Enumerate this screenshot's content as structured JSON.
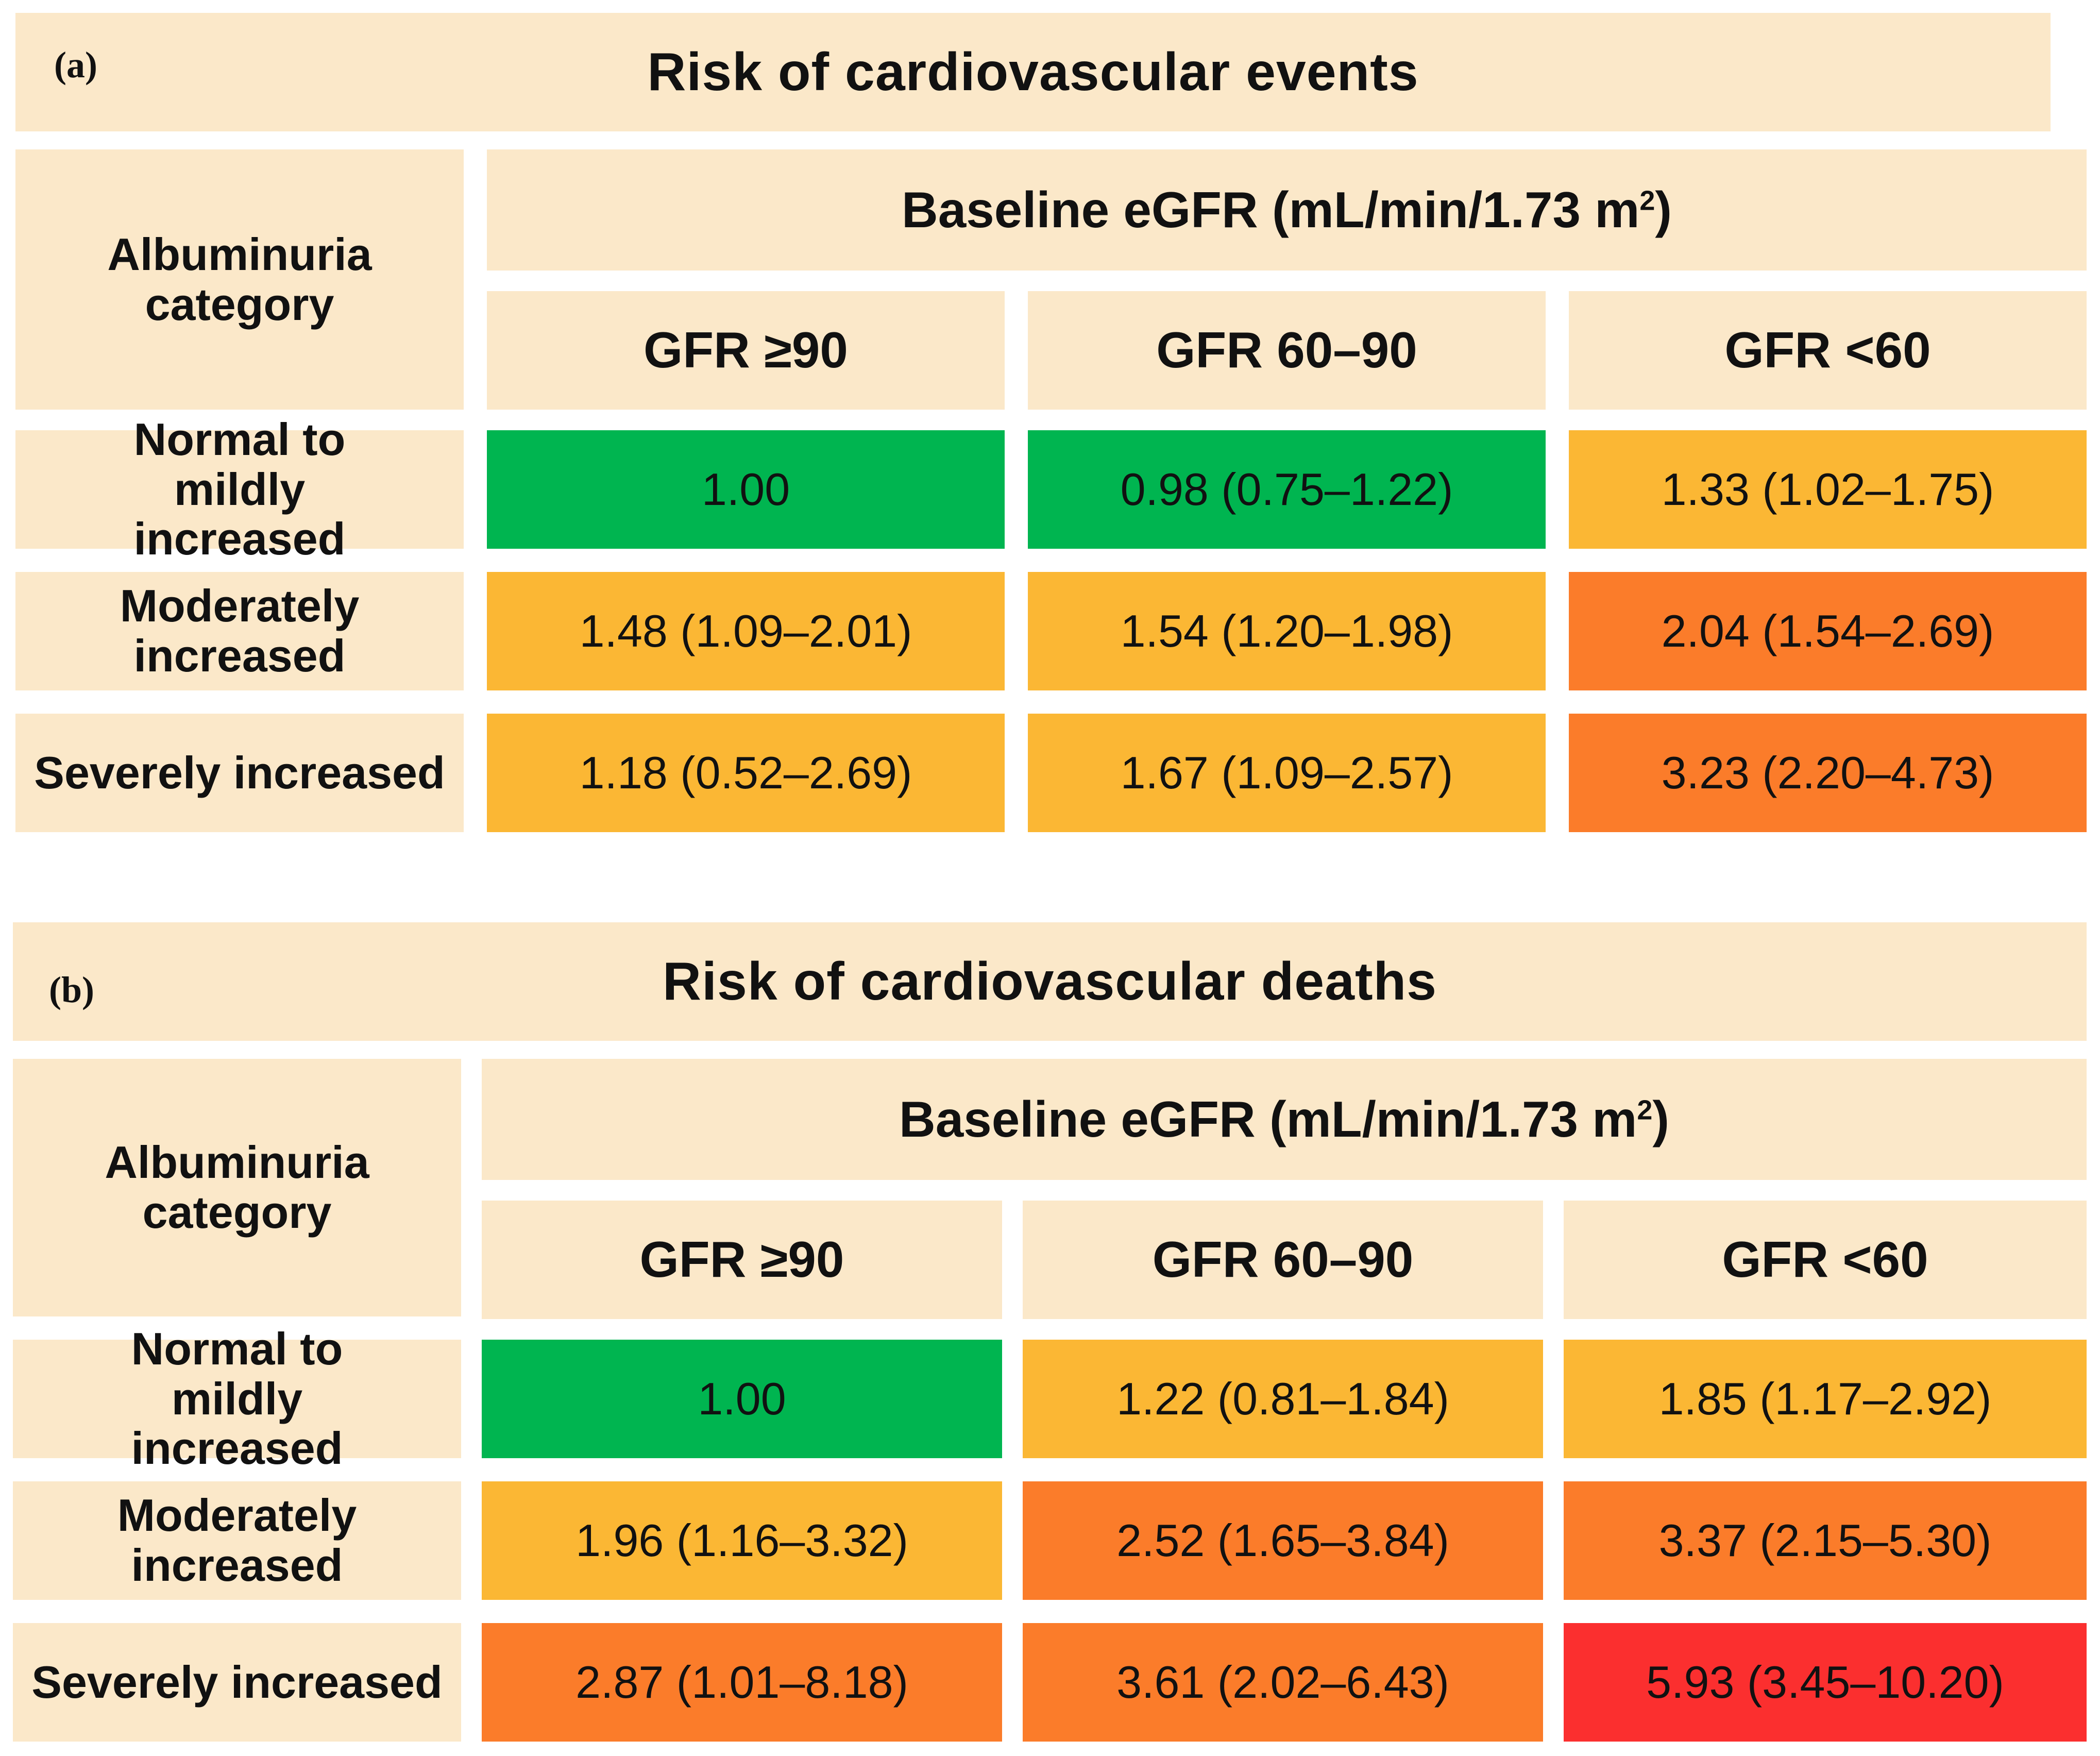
{
  "chart_data": [
    {
      "type": "table",
      "panel": "(a)",
      "title": "Risk of cardiovascular events",
      "row_header": "Albuminuria category",
      "column_group_header": "Baseline eGFR (mL/min/1.73 m2)",
      "columns": [
        "GFR ≥90",
        "GFR 60–90",
        "GFR <60"
      ],
      "rows": [
        "Normal to mildly increased",
        "Moderately increased",
        "Severely increased"
      ],
      "values": [
        [
          "1.00",
          "0.98 (0.75–1.22)",
          "1.33 (1.02–1.75)"
        ],
        [
          "1.48 (1.09–2.01)",
          "1.54 (1.20–1.98)",
          "2.04 (1.54–2.69)"
        ],
        [
          "1.18 (0.52–2.69)",
          "1.67 (1.09–2.57)",
          "3.23 (2.20–4.73)"
        ]
      ],
      "colors": [
        [
          "#00b550",
          "#00b550",
          "#fbb734"
        ],
        [
          "#fbb734",
          "#fbb734",
          "#fb7c2a"
        ],
        [
          "#fbb734",
          "#fbb734",
          "#fb7c2a"
        ]
      ]
    },
    {
      "type": "table",
      "panel": "(b)",
      "title": "Risk of cardiovascular deaths",
      "row_header": "Albuminuria category",
      "column_group_header": "Baseline eGFR (mL/min/1.73 m2)",
      "columns": [
        "GFR ≥90",
        "GFR 60–90",
        "GFR <60"
      ],
      "rows": [
        "Normal to mildly increased",
        "Moderately increased",
        "Severely increased"
      ],
      "values": [
        [
          "1.00",
          "1.22 (0.81–1.84)",
          "1.85 (1.17–2.92)"
        ],
        [
          "1.96 (1.16–3.32)",
          "2.52 (1.65–3.84)",
          "3.37 (2.15–5.30)"
        ],
        [
          "2.87 (1.01–8.18)",
          "3.61 (2.02–6.43)",
          "5.93 (3.45–10.20)"
        ]
      ],
      "colors": [
        [
          "#00b550",
          "#fbb734",
          "#fbb734"
        ],
        [
          "#fbb734",
          "#fb7c2a",
          "#fb7c2a"
        ],
        [
          "#fb7c2a",
          "#fb7c2a",
          "#fb2f2f"
        ]
      ]
    }
  ],
  "palette": {
    "header_background": "#fbe8c9",
    "reference_green": "#00b550",
    "moderate_yellow": "#fbb734",
    "high_orange": "#fb7c2a",
    "very_high_red": "#fb2f2f"
  }
}
